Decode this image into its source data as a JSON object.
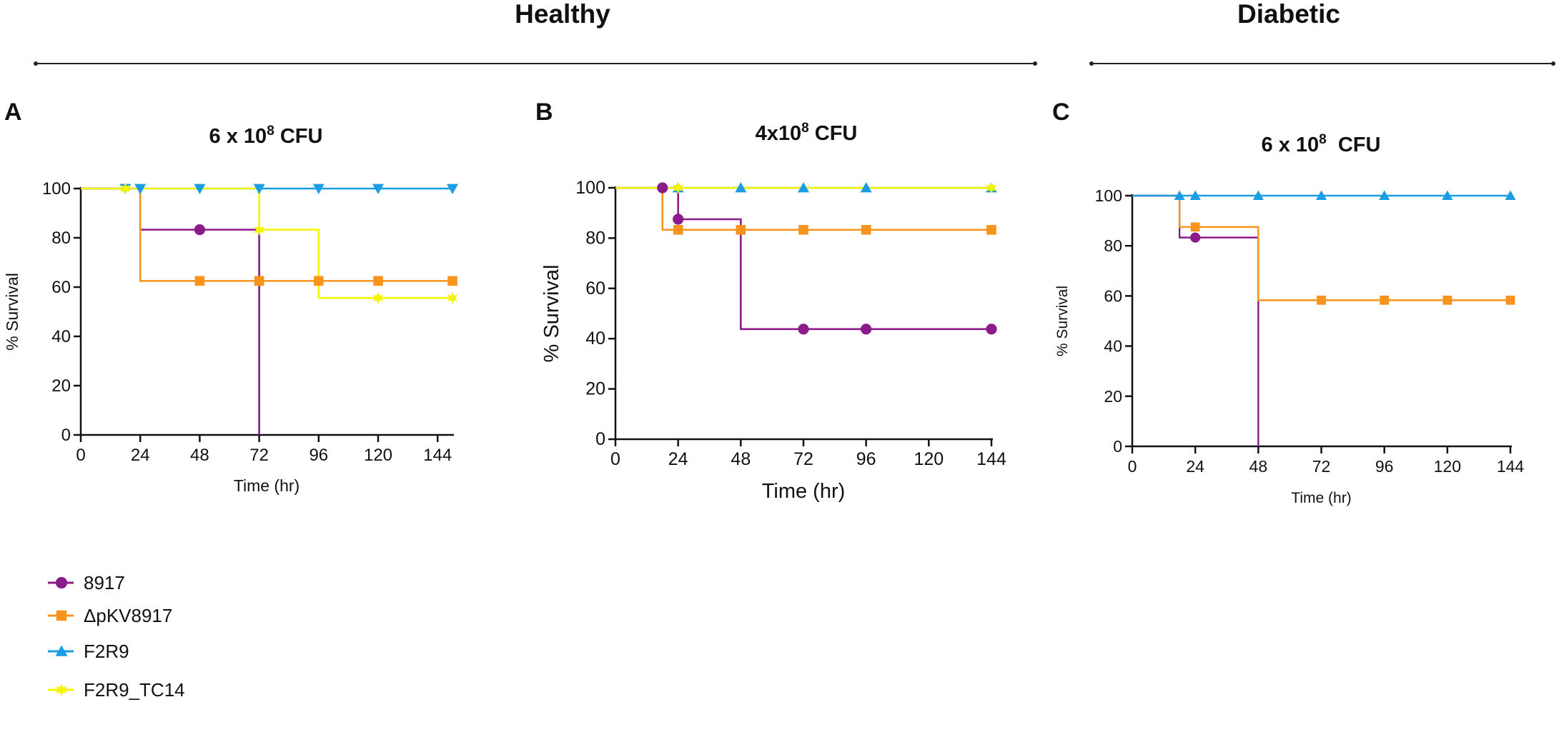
{
  "groups": {
    "healthy": "Healthy",
    "diabetic": "Diabetic"
  },
  "panels": [
    {
      "label": "A",
      "title_prefix": "6 x 10",
      "title_exp": "8",
      "title_suffix": " CFU"
    },
    {
      "label": "B",
      "title_prefix": "4x10",
      "title_exp": "8",
      "title_suffix": " CFU"
    },
    {
      "label": "C",
      "title_prefix": "6 x 10",
      "title_exp": "8",
      "title_suffix": "  CFU"
    }
  ],
  "legend": [
    {
      "name": "8917",
      "color": "#8B1A8B",
      "marker": "circle"
    },
    {
      "name": "ΔpKV8917",
      "color": "#F7941D",
      "marker": "square"
    },
    {
      "name": "F2R9",
      "color": "#1B9CE5",
      "marker": "triangle"
    },
    {
      "name": "F2R9_TC14",
      "color": "#F5F500",
      "marker": "star"
    }
  ],
  "chart_data": [
    {
      "type": "line",
      "step": "post",
      "title": "6 x 10^8 CFU",
      "xlabel": "Time (hr)",
      "ylabel": "% Survival",
      "xlim": [
        0,
        150
      ],
      "ylim": [
        0,
        100
      ],
      "xticks": [
        0,
        24,
        48,
        72,
        96,
        120,
        144
      ],
      "yticks": [
        0,
        20,
        40,
        60,
        80,
        100
      ],
      "series": [
        {
          "name": "8917",
          "x": [
            0,
            24,
            72
          ],
          "y": [
            100,
            83.3,
            0
          ],
          "markers_x": [
            48
          ]
        },
        {
          "name": "ΔpKV8917",
          "x": [
            0,
            24,
            150
          ],
          "y": [
            100,
            62.5,
            62.5
          ],
          "markers_x": [
            48,
            72,
            96,
            120,
            150
          ]
        },
        {
          "name": "F2R9",
          "x": [
            0,
            150
          ],
          "y": [
            100,
            100
          ],
          "markers_x": [
            18,
            24,
            48,
            72,
            96,
            120,
            150
          ]
        },
        {
          "name": "F2R9_TC14",
          "x": [
            0,
            72,
            96,
            150
          ],
          "y": [
            100,
            83.3,
            55.6,
            55.6
          ],
          "markers_x": [
            18,
            72,
            120,
            150
          ]
        }
      ]
    },
    {
      "type": "line",
      "step": "post",
      "title": "4x10^8 CFU",
      "xlabel": "Time (hr)",
      "ylabel": "% Survival",
      "xlim": [
        0,
        144
      ],
      "ylim": [
        0,
        100
      ],
      "xticks": [
        0,
        24,
        48,
        72,
        96,
        120,
        144
      ],
      "yticks": [
        0,
        20,
        40,
        60,
        80,
        100
      ],
      "series": [
        {
          "name": "8917",
          "x": [
            0,
            24,
            48,
            144
          ],
          "y": [
            100,
            87.5,
            43.8,
            43.8
          ],
          "markers_x": [
            18,
            24,
            72,
            96,
            144
          ]
        },
        {
          "name": "ΔpKV8917",
          "x": [
            0,
            18,
            144
          ],
          "y": [
            100,
            83.3,
            83.3
          ],
          "markers_x": [
            24,
            48,
            72,
            96,
            144
          ]
        },
        {
          "name": "F2R9",
          "x": [
            0,
            144
          ],
          "y": [
            100,
            100
          ],
          "markers_x": [
            24,
            48,
            72,
            96,
            144
          ]
        },
        {
          "name": "F2R9_TC14",
          "x": [
            0,
            144
          ],
          "y": [
            100,
            100
          ],
          "markers_x": [
            24,
            144
          ]
        }
      ]
    },
    {
      "type": "line",
      "step": "post",
      "title": "6 x 10^8 CFU",
      "xlabel": "Time (hr)",
      "ylabel": "% Survival",
      "xlim": [
        0,
        144
      ],
      "ylim": [
        0,
        100
      ],
      "xticks": [
        0,
        24,
        48,
        72,
        96,
        120,
        144
      ],
      "yticks": [
        0,
        20,
        40,
        60,
        80,
        100
      ],
      "series": [
        {
          "name": "8917",
          "x": [
            0,
            18,
            48
          ],
          "y": [
            100,
            83.3,
            0
          ],
          "markers_x": [
            24
          ]
        },
        {
          "name": "ΔpKV8917",
          "x": [
            0,
            18,
            48,
            144
          ],
          "y": [
            100,
            87.5,
            58.3,
            58.3
          ],
          "markers_x": [
            24,
            72,
            96,
            120,
            144
          ]
        },
        {
          "name": "F2R9",
          "x": [
            0,
            144
          ],
          "y": [
            100,
            100
          ],
          "markers_x": [
            18,
            24,
            48,
            72,
            96,
            120,
            144
          ]
        }
      ]
    }
  ]
}
